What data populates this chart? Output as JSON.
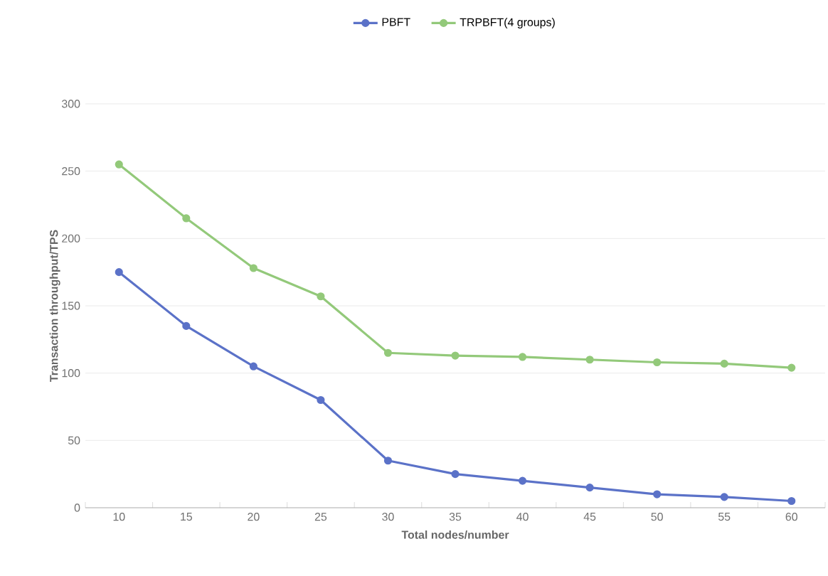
{
  "chart_data": {
    "type": "line",
    "xlabel": "Total nodes/number",
    "ylabel": "Transaction throughput/TPS",
    "categories": [
      "10",
      "15",
      "20",
      "25",
      "30",
      "35",
      "40",
      "45",
      "50",
      "55",
      "60"
    ],
    "series": [
      {
        "name": "PBFT",
        "color": "#5b72c8",
        "values": [
          175,
          135,
          105,
          80,
          35,
          25,
          20,
          15,
          10,
          8,
          5
        ]
      },
      {
        "name": "TRPBFT(4 groups)",
        "color": "#93c97a",
        "values": [
          255,
          215,
          178,
          157,
          115,
          113,
          112,
          110,
          108,
          107,
          104
        ]
      }
    ],
    "ylim": [
      0,
      300
    ],
    "yticks": [
      0,
      50,
      100,
      150,
      200,
      250,
      300
    ],
    "grid": "y",
    "legend": "top",
    "marker": "circle",
    "line_style": "solid"
  }
}
